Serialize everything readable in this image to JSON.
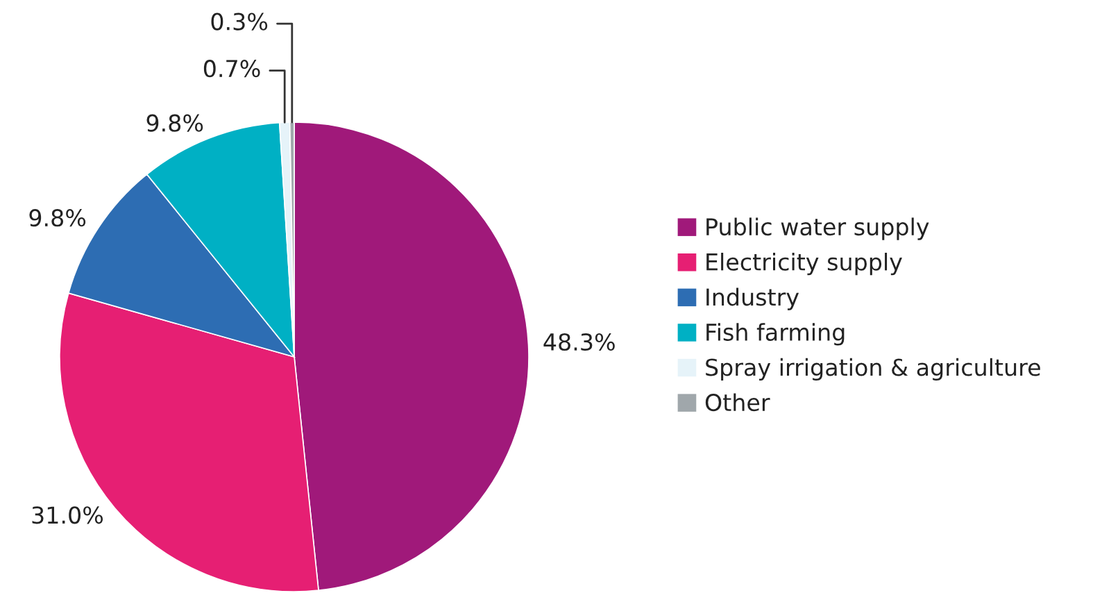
{
  "chart_data": {
    "type": "pie",
    "categories": [
      "Public water supply",
      "Electricity supply",
      "Industry",
      "Fish farming",
      "Spray irrigation & agriculture",
      "Other"
    ],
    "values": [
      48.3,
      31.0,
      9.8,
      9.8,
      0.7,
      0.3
    ],
    "colors": [
      "#a0197a",
      "#e61f73",
      "#2d6db3",
      "#00b0c4",
      "#e6f3f9",
      "#a0a7ab"
    ],
    "value_labels": [
      "48.3%",
      "31.0%",
      "9.8%",
      "9.8%",
      "0.7%",
      "0.3%"
    ],
    "legend": "right"
  }
}
